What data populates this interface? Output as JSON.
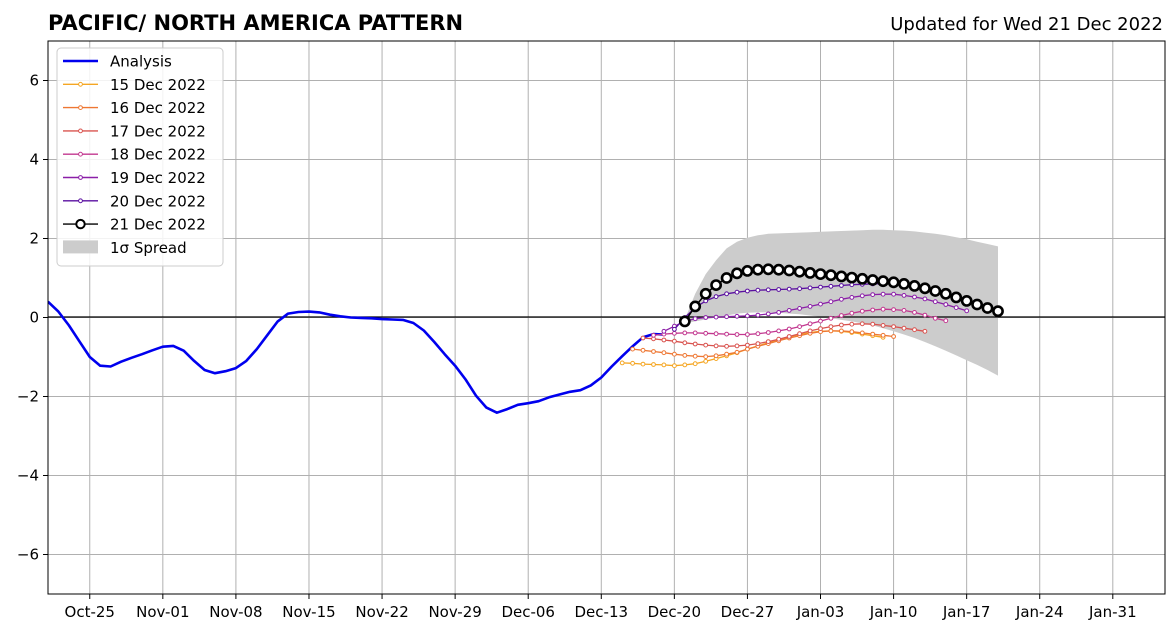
{
  "chart_data": {
    "type": "line",
    "title": "PACIFIC/ NORTH AMERICA PATTERN",
    "subtitle": "Updated for Wed 21 Dec 2022",
    "xlabel": "",
    "ylabel": "",
    "x_range": [
      "2022-10-21",
      "2023-02-05"
    ],
    "ylim": [
      -7,
      7
    ],
    "yticks": [
      -6,
      -4,
      -2,
      0,
      2,
      4,
      6
    ],
    "ytick_labels": [
      "−6",
      "−4",
      "−2",
      "0",
      "2",
      "4",
      "6"
    ],
    "xticks": [
      "2022-10-25",
      "2022-11-01",
      "2022-11-08",
      "2022-11-15",
      "2022-11-22",
      "2022-11-29",
      "2022-12-06",
      "2022-12-13",
      "2022-12-20",
      "2022-12-27",
      "2023-01-03",
      "2023-01-10",
      "2023-01-17",
      "2023-01-24",
      "2023-01-31"
    ],
    "xtick_labels": [
      "Oct-25",
      "Nov-01",
      "Nov-08",
      "Nov-15",
      "Nov-22",
      "Nov-29",
      "Dec-06",
      "Dec-13",
      "Dec-20",
      "Dec-27",
      "Jan-03",
      "Jan-10",
      "Jan-17",
      "Jan-24",
      "Jan-31"
    ],
    "grid": true,
    "zero_line": true,
    "legend_position": "top-left",
    "analysis": {
      "name": "Analysis",
      "color": "#0000ee",
      "start_date": "2022-10-21",
      "values": [
        0.4,
        0.15,
        -0.2,
        -0.6,
        -1.0,
        -1.22,
        -1.24,
        -1.12,
        -1.02,
        -0.93,
        -0.83,
        -0.74,
        -0.72,
        -0.84,
        -1.1,
        -1.33,
        -1.41,
        -1.36,
        -1.28,
        -1.1,
        -0.8,
        -0.45,
        -0.1,
        0.1,
        0.14,
        0.15,
        0.13,
        0.07,
        0.03,
        0.0,
        -0.01,
        -0.02,
        -0.04,
        -0.05,
        -0.06,
        -0.14,
        -0.33,
        -0.62,
        -0.93,
        -1.22,
        -1.57,
        -1.98,
        -2.28,
        -2.41,
        -2.32,
        -2.21,
        -2.17,
        -2.12,
        -2.02,
        -1.95,
        -1.88,
        -1.84,
        -1.72,
        -1.52,
        -1.24,
        -0.98,
        -0.73,
        -0.5,
        -0.42,
        -0.43
      ]
    },
    "series": [
      {
        "name": "15 Dec 2022",
        "color": "#f5a623",
        "start_date": "2022-12-15",
        "values": [
          -1.15,
          -1.16,
          -1.18,
          -1.19,
          -1.2,
          -1.22,
          -1.2,
          -1.17,
          -1.11,
          -1.04,
          -0.97,
          -0.89,
          -0.8,
          -0.72,
          -0.64,
          -0.56,
          -0.49,
          -0.43,
          -0.38,
          -0.35,
          -0.34,
          -0.35,
          -0.38,
          -0.42,
          -0.46,
          -0.5
        ]
      },
      {
        "name": "16 Dec 2022",
        "color": "#ee7733",
        "start_date": "2022-12-16",
        "values": [
          -0.8,
          -0.83,
          -0.86,
          -0.89,
          -0.93,
          -0.96,
          -0.98,
          -0.99,
          -0.97,
          -0.93,
          -0.88,
          -0.8,
          -0.73,
          -0.66,
          -0.59,
          -0.52,
          -0.46,
          -0.4,
          -0.36,
          -0.34,
          -0.34,
          -0.36,
          -0.39,
          -0.42,
          -0.45,
          -0.48
        ]
      },
      {
        "name": "17 Dec 2022",
        "color": "#d9534f",
        "start_date": "2022-12-17",
        "values": [
          -0.52,
          -0.54,
          -0.57,
          -0.6,
          -0.64,
          -0.67,
          -0.7,
          -0.72,
          -0.73,
          -0.72,
          -0.7,
          -0.66,
          -0.61,
          -0.55,
          -0.48,
          -0.41,
          -0.34,
          -0.28,
          -0.23,
          -0.19,
          -0.17,
          -0.16,
          -0.17,
          -0.2,
          -0.23,
          -0.27,
          -0.31,
          -0.35
        ]
      },
      {
        "name": "18 Dec 2022",
        "color": "#c2378f",
        "start_date": "2022-12-18",
        "values": [
          -0.45,
          -0.42,
          -0.4,
          -0.39,
          -0.39,
          -0.4,
          -0.41,
          -0.42,
          -0.43,
          -0.43,
          -0.41,
          -0.38,
          -0.34,
          -0.29,
          -0.23,
          -0.16,
          -0.09,
          -0.02,
          0.05,
          0.11,
          0.16,
          0.19,
          0.21,
          0.2,
          0.18,
          0.13,
          0.06,
          -0.02,
          -0.08
        ]
      },
      {
        "name": "19 Dec 2022",
        "color": "#8b1fa8",
        "start_date": "2022-12-19",
        "values": [
          -0.35,
          -0.22,
          -0.1,
          -0.03,
          0.0,
          0.01,
          0.02,
          0.03,
          0.04,
          0.06,
          0.09,
          0.13,
          0.18,
          0.23,
          0.28,
          0.34,
          0.4,
          0.46,
          0.51,
          0.55,
          0.58,
          0.59,
          0.59,
          0.56,
          0.52,
          0.47,
          0.4,
          0.33,
          0.25,
          0.17
        ]
      },
      {
        "name": "20 Dec 2022",
        "color": "#5a0fa0",
        "start_date": "2022-12-20",
        "values": [
          -0.3,
          0.0,
          0.25,
          0.42,
          0.53,
          0.6,
          0.64,
          0.67,
          0.69,
          0.7,
          0.71,
          0.72,
          0.73,
          0.75,
          0.77,
          0.79,
          0.81,
          0.83,
          0.84,
          0.85,
          0.85
        ]
      },
      {
        "name": "21 Dec 2022",
        "color": "#000000",
        "start_date": "2022-12-21",
        "marker": "open-circle",
        "values": [
          -0.1,
          0.28,
          0.6,
          0.82,
          1.0,
          1.12,
          1.18,
          1.21,
          1.22,
          1.21,
          1.19,
          1.16,
          1.13,
          1.1,
          1.07,
          1.04,
          1.01,
          0.98,
          0.95,
          0.92,
          0.89,
          0.85,
          0.8,
          0.74,
          0.67,
          0.6,
          0.51,
          0.42,
          0.33,
          0.24,
          0.16
        ]
      }
    ],
    "spread": {
      "name": "1σ Spread",
      "color": "#cccccc",
      "start_date": "2022-12-21",
      "upper": [
        -0.05,
        0.6,
        1.1,
        1.45,
        1.75,
        1.92,
        2.02,
        2.08,
        2.12,
        2.13,
        2.14,
        2.15,
        2.16,
        2.17,
        2.18,
        2.19,
        2.2,
        2.21,
        2.22,
        2.22,
        2.21,
        2.2,
        2.18,
        2.15,
        2.12,
        2.08,
        2.03,
        1.98,
        1.92,
        1.86,
        1.8
      ],
      "lower": [
        -0.15,
        -0.1,
        -0.05,
        0.0,
        0.05,
        0.1,
        0.12,
        0.13,
        0.13,
        0.12,
        0.1,
        0.08,
        0.05,
        0.02,
        -0.02,
        -0.06,
        -0.1,
        -0.15,
        -0.2,
        -0.27,
        -0.35,
        -0.43,
        -0.52,
        -0.62,
        -0.73,
        -0.84,
        -0.96,
        -1.08,
        -1.2,
        -1.33,
        -1.47
      ]
    }
  }
}
